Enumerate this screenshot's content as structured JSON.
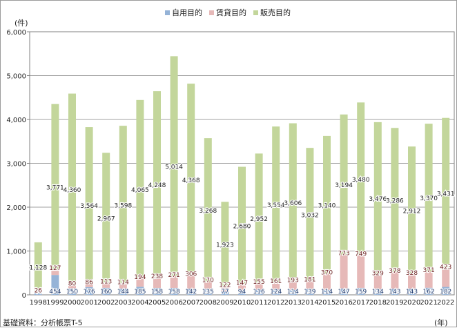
{
  "chart_data": {
    "type": "bar",
    "stacked": true,
    "categories": [
      "1998",
      "1999",
      "2000",
      "2001",
      "2002",
      "2003",
      "2004",
      "2005",
      "2006",
      "2007",
      "2008",
      "2009",
      "2010",
      "2011",
      "2012",
      "2013",
      "2014",
      "2015",
      "2016",
      "2017",
      "2018",
      "2019",
      "2020",
      "2021",
      "2022"
    ],
    "series": [
      {
        "name": "自用目的",
        "color": "#95b3d7",
        "values": [
          44,
          454,
          150,
          176,
          160,
          144,
          185,
          158,
          158,
          142,
          135,
          77,
          94,
          116,
          124,
          114,
          139,
          114,
          147,
          159,
          134,
          143,
          143,
          162,
          182
        ]
      },
      {
        "name": "賃貸目的",
        "color": "#e6b9b8",
        "values": [
          26,
          127,
          80,
          86,
          113,
          114,
          194,
          238,
          271,
          306,
          170,
          122,
          147,
          155,
          161,
          193,
          181,
          370,
          773,
          749,
          329,
          378,
          328,
          371,
          423
        ]
      },
      {
        "name": "販売目的",
        "color": "#c3d69b",
        "values": [
          1128,
          3771,
          4360,
          3564,
          2967,
          3598,
          4065,
          4248,
          5014,
          4368,
          3268,
          1923,
          2680,
          2952,
          3554,
          3606,
          3032,
          3140,
          3194,
          3480,
          3476,
          3286,
          2912,
          3370,
          3431
        ]
      }
    ],
    "ylim": [
      0,
      6000
    ],
    "yticks": [
      "0",
      "1,000",
      "2,000",
      "3,000",
      "4,000",
      "5,000",
      "6,000"
    ],
    "ylabel": "(件)",
    "xlabel": "(年)",
    "legend_position": "top-center"
  },
  "source_note": "基礎資料：分析帳票T-5"
}
